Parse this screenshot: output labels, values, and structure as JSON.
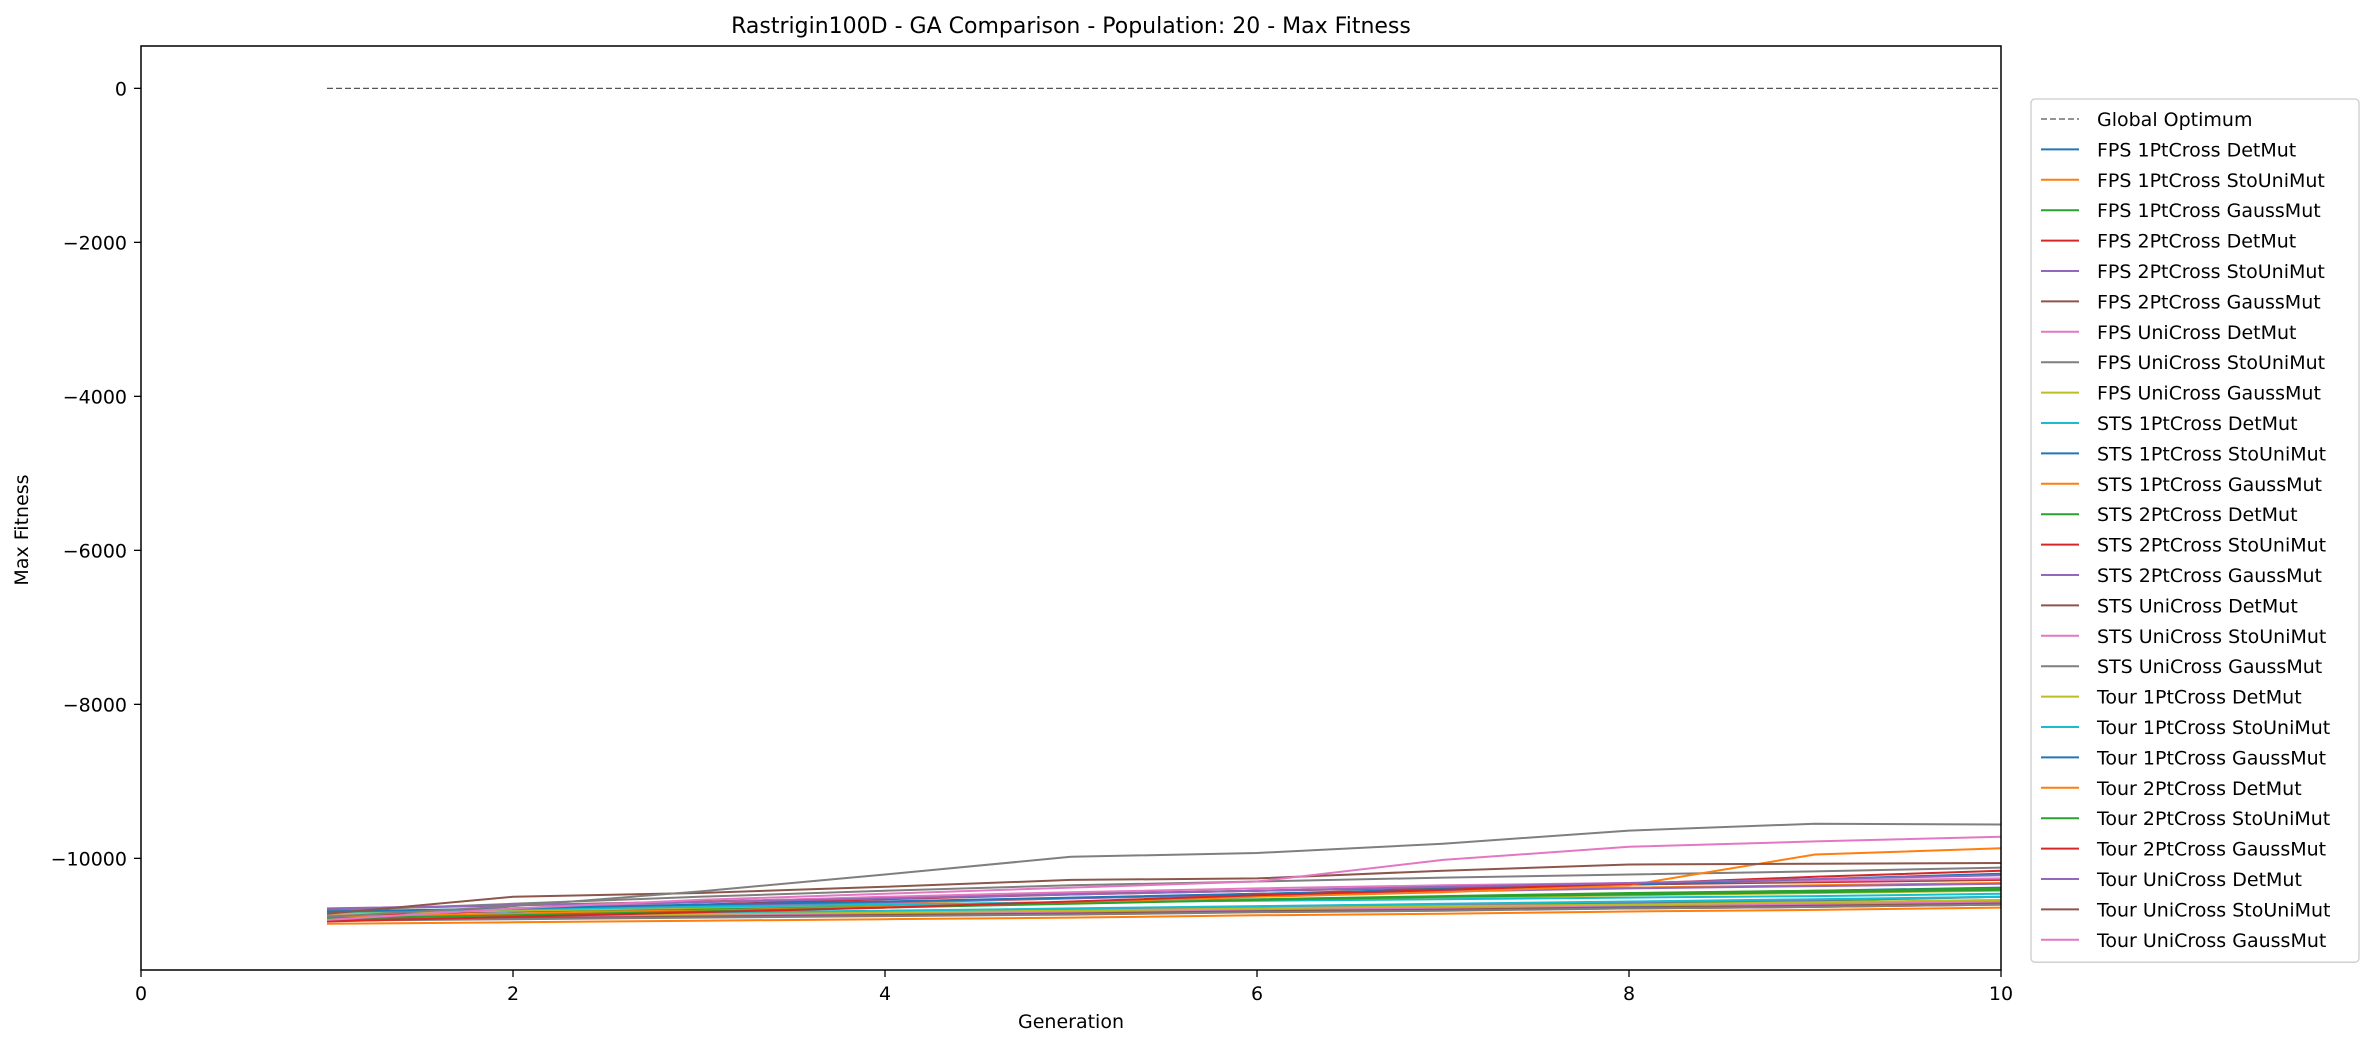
{
  "chart_data": {
    "type": "line",
    "title": "Rastrigin100D - GA Comparison - Population: 20 - Max Fitness",
    "xlabel": "Generation",
    "ylabel": "Max Fitness",
    "xlim": [
      0,
      10
    ],
    "ylim": [
      -11450,
      550
    ],
    "xticks": [
      0,
      2,
      4,
      6,
      8,
      10
    ],
    "yticks": [
      0,
      -2000,
      -4000,
      -6000,
      -8000,
      -10000
    ],
    "grid": false,
    "legend_position": "outside-right",
    "x": [
      1,
      2,
      3,
      4,
      5,
      6,
      7,
      8,
      9,
      10
    ],
    "reference": {
      "name": "Global Optimum",
      "value": 0,
      "color": "#555555",
      "dashed": true
    },
    "series": [
      {
        "name": "FPS 1PtCross DetMut",
        "color": "#1f77b4",
        "values": [
          -10780,
          -10760,
          -10740,
          -10720,
          -10700,
          -10680,
          -10650,
          -10620,
          -10580,
          -10550
        ]
      },
      {
        "name": "FPS 1PtCross StoUniMut",
        "color": "#ff7f0e",
        "values": [
          -10850,
          -10830,
          -10810,
          -10790,
          -10770,
          -10740,
          -10720,
          -10690,
          -10670,
          -10640
        ]
      },
      {
        "name": "FPS 1PtCross GaussMut",
        "color": "#2ca02c",
        "values": [
          -10760,
          -10740,
          -10720,
          -10700,
          -10670,
          -10640,
          -10610,
          -10580,
          -10550,
          -10500
        ]
      },
      {
        "name": "FPS 2PtCross DetMut",
        "color": "#d62728",
        "values": [
          -10800,
          -10780,
          -10760,
          -10740,
          -10720,
          -10690,
          -10670,
          -10650,
          -10630,
          -10600
        ]
      },
      {
        "name": "FPS 2PtCross StoUniMut",
        "color": "#9467bd",
        "values": [
          -10750,
          -10730,
          -10710,
          -10690,
          -10660,
          -10630,
          -10600,
          -10570,
          -10540,
          -10500
        ]
      },
      {
        "name": "FPS 2PtCross GaussMut",
        "color": "#8c564b",
        "values": [
          -10790,
          -10770,
          -10750,
          -10730,
          -10710,
          -10690,
          -10660,
          -10640,
          -10610,
          -10580
        ]
      },
      {
        "name": "FPS UniCross DetMut",
        "color": "#e377c2",
        "values": [
          -10770,
          -10750,
          -10730,
          -10710,
          -10690,
          -10660,
          -10640,
          -10610,
          -10590,
          -10560
        ]
      },
      {
        "name": "FPS UniCross StoUniMut",
        "color": "#7f7f7f",
        "values": [
          -10810,
          -10790,
          -10770,
          -10750,
          -10730,
          -10700,
          -10680,
          -10650,
          -10630,
          -10600
        ]
      },
      {
        "name": "FPS UniCross GaussMut",
        "color": "#bcbd22",
        "values": [
          -10760,
          -10740,
          -10720,
          -10700,
          -10680,
          -10650,
          -10620,
          -10600,
          -10570,
          -10540
        ]
      },
      {
        "name": "STS 1PtCross DetMut",
        "color": "#17becf",
        "values": [
          -10740,
          -10720,
          -10700,
          -10680,
          -10650,
          -10620,
          -10590,
          -10560,
          -10530,
          -10500
        ]
      },
      {
        "name": "STS 1PtCross StoUniMut",
        "color": "#1f77b4",
        "values": [
          -10720,
          -10690,
          -10660,
          -10620,
          -10580,
          -10540,
          -10500,
          -10460,
          -10420,
          -10380
        ]
      },
      {
        "name": "STS 1PtCross GaussMut",
        "color": "#ff7f0e",
        "values": [
          -10780,
          -10720,
          -10650,
          -10580,
          -10520,
          -10460,
          -10420,
          -10380,
          -10350,
          -10320
        ]
      },
      {
        "name": "STS 2PtCross DetMut",
        "color": "#2ca02c",
        "values": [
          -10710,
          -10680,
          -10650,
          -10610,
          -10570,
          -10530,
          -10490,
          -10450,
          -10420,
          -10390
        ]
      },
      {
        "name": "STS 2PtCross StoUniMut",
        "color": "#d62728",
        "values": [
          -10750,
          -10680,
          -10600,
          -10530,
          -10470,
          -10420,
          -10380,
          -10340,
          -10310,
          -10280
        ]
      },
      {
        "name": "STS 2PtCross GaussMut",
        "color": "#9467bd",
        "values": [
          -10700,
          -10660,
          -10620,
          -10570,
          -10520,
          -10470,
          -10430,
          -10390,
          -10360,
          -10330
        ]
      },
      {
        "name": "STS UniCross DetMut",
        "color": "#8c564b",
        "values": [
          -10660,
          -10610,
          -10560,
          -10510,
          -10460,
          -10420,
          -10380,
          -10340,
          -10300,
          -10270
        ]
      },
      {
        "name": "STS UniCross StoUniMut",
        "color": "#e377c2",
        "values": [
          -10730,
          -10650,
          -10570,
          -10500,
          -10440,
          -10390,
          -10350,
          -10320,
          -10290,
          -10260
        ]
      },
      {
        "name": "STS UniCross GaussMut",
        "color": "#7f7f7f",
        "values": [
          -10680,
          -10590,
          -10500,
          -10420,
          -10350,
          -10300,
          -10250,
          -10210,
          -10170,
          -10120
        ]
      },
      {
        "name": "Tour 1PtCross DetMut",
        "color": "#bcbd22",
        "values": [
          -10720,
          -10680,
          -10640,
          -10600,
          -10570,
          -10540,
          -10510,
          -10480,
          -10450,
          -10420
        ]
      },
      {
        "name": "Tour 1PtCross StoUniMut",
        "color": "#17becf",
        "values": [
          -10700,
          -10660,
          -10630,
          -10600,
          -10570,
          -10550,
          -10530,
          -10510,
          -10490,
          -10460
        ]
      },
      {
        "name": "Tour 1PtCross GaussMut",
        "color": "#1f77b4",
        "values": [
          -10690,
          -10650,
          -10600,
          -10560,
          -10510,
          -10460,
          -10400,
          -10340,
          -10270,
          -10200
        ]
      },
      {
        "name": "Tour 2PtCross DetMut",
        "color": "#ff7f0e",
        "values": [
          -10760,
          -10720,
          -10680,
          -10630,
          -10570,
          -10500,
          -10440,
          -10350,
          -9950,
          -9870
        ]
      },
      {
        "name": "Tour 2PtCross StoUniMut",
        "color": "#2ca02c",
        "values": [
          -10780,
          -10740,
          -10690,
          -10640,
          -10590,
          -10540,
          -10500,
          -10470,
          -10440,
          -10410
        ]
      },
      {
        "name": "Tour 2PtCross GaussMut",
        "color": "#d62728",
        "values": [
          -10820,
          -10760,
          -10700,
          -10640,
          -10560,
          -10480,
          -10410,
          -10330,
          -10240,
          -10160
        ]
      },
      {
        "name": "Tour UniCross DetMut",
        "color": "#9467bd",
        "values": [
          -10650,
          -10610,
          -10570,
          -10520,
          -10470,
          -10420,
          -10370,
          -10320,
          -10270,
          -10220
        ]
      },
      {
        "name": "Tour UniCross StoUniMut",
        "color": "#8c564b",
        "values": [
          -10720,
          -10500,
          -10450,
          -10370,
          -10280,
          -10260,
          -10160,
          -10080,
          -10070,
          -10060
        ]
      },
      {
        "name": "Tour UniCross GaussMut",
        "color": "#e377c2",
        "values": [
          -10800,
          -10650,
          -10540,
          -10460,
          -10380,
          -10300,
          -10020,
          -9850,
          -9780,
          -9720
        ]
      },
      {
        "name": "",
        "color": "#7f7f7f",
        "values": [
          -10760,
          -10620,
          -10430,
          -10210,
          -9980,
          -9930,
          -9810,
          -9640,
          -9550,
          -9560
        ]
      }
    ]
  }
}
